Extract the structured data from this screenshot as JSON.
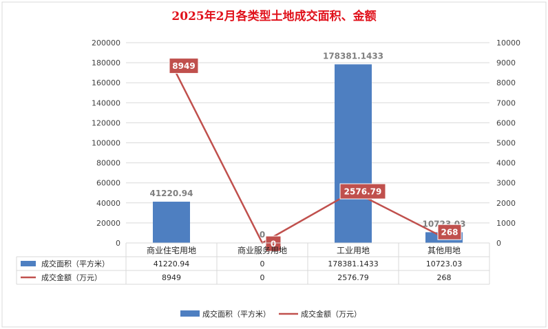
{
  "chart_data": {
    "type": "bar",
    "title": "2025年2月各类型土地成交面积、金额",
    "categories": [
      "商业住宅用地",
      "商业服务用地",
      "工业用地",
      "其他用地"
    ],
    "series": [
      {
        "name": "成交面积（平方米）",
        "type": "bar",
        "axis": "left",
        "color": "#4e7fc1",
        "values": [
          41220.94,
          0,
          178381.1433,
          10723.03
        ],
        "labels": [
          "41220.94",
          "0",
          "178381.1433",
          "10723.03"
        ]
      },
      {
        "name": "成交金额（万元）",
        "type": "line",
        "axis": "right",
        "color": "#c0504d",
        "values": [
          8949,
          0,
          2576.79,
          268
        ],
        "labels": [
          "8949",
          "0",
          "2576.79",
          "268"
        ]
      }
    ],
    "y_left": {
      "min": 0,
      "max": 200000,
      "step": 20000
    },
    "y_right": {
      "min": 0,
      "max": 10000,
      "step": 1000
    },
    "grid": true,
    "legend_position": "bottom",
    "data_table": true
  }
}
